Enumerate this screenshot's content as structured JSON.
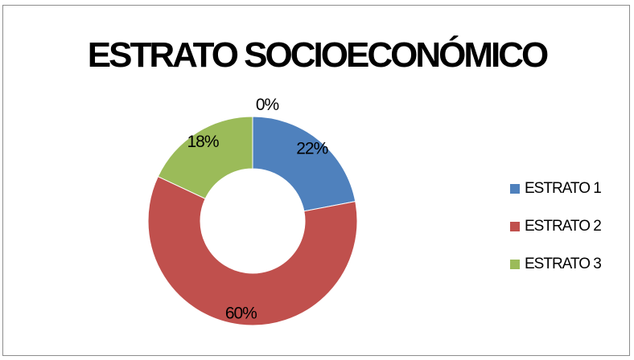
{
  "chart_data": {
    "type": "pie",
    "title": "ESTRATO SOCIOECONÓMICO",
    "categories": [
      "ESTRATO 1",
      "ESTRATO 2",
      "ESTRATO 3",
      ""
    ],
    "values": [
      22,
      60,
      18,
      0
    ],
    "data_labels": [
      "22%",
      "60%",
      "18%",
      "0%"
    ],
    "colors": [
      "#4f81bd",
      "#c0504d",
      "#9bbb59",
      "#8064a2"
    ],
    "legend_placement": "right",
    "style": "doughnut"
  }
}
